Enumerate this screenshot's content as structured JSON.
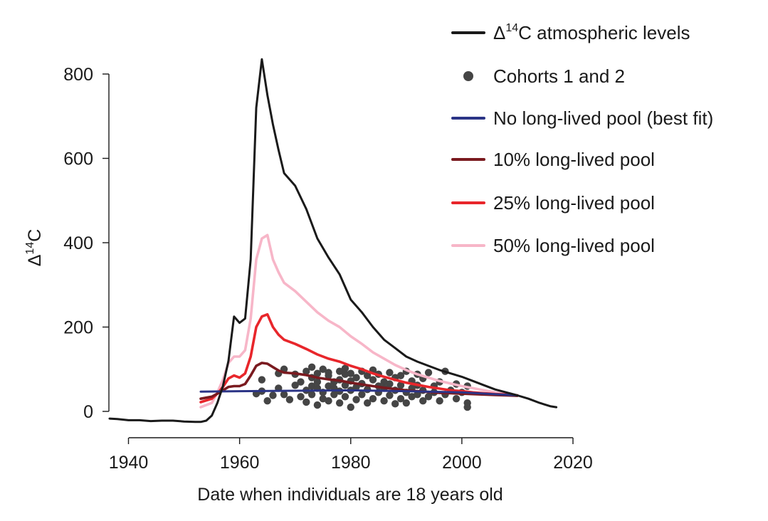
{
  "chart_data": {
    "type": "line",
    "xlabel": "Date when individuals are 18 years old",
    "ylabel": {
      "prefix": "Δ",
      "sup": "14",
      "suffix": "C"
    },
    "xlim": [
      1937,
      2020
    ],
    "ylim": [
      -25,
      850
    ],
    "x_ticks": [
      1940,
      1960,
      1980,
      2000,
      2020
    ],
    "y_ticks": [
      0,
      200,
      400,
      600,
      800
    ],
    "grid": false,
    "legend_position": "top-right",
    "legend": [
      {
        "key": "atm",
        "prefix": "Δ",
        "sup": "14",
        "suffix": "C atmospheric levels",
        "marker": "line",
        "color": "#1a1a1a"
      },
      {
        "key": "cohorts",
        "label": "Cohorts 1 and 2",
        "marker": "dot",
        "color": "#454545"
      },
      {
        "key": "none",
        "label": "No long-lived pool (best fit)",
        "marker": "line",
        "color": "#2b3486"
      },
      {
        "key": "p10",
        "label": "10% long-lived pool",
        "marker": "line",
        "color": "#7a1a1f"
      },
      {
        "key": "p25",
        "label": "25% long-lived pool",
        "marker": "line",
        "color": "#e8262b"
      },
      {
        "key": "p50",
        "label": "50% long-lived pool",
        "marker": "line",
        "color": "#f7b6c8"
      }
    ],
    "series": [
      {
        "key": "atm",
        "color": "#1a1a1a",
        "points": [
          [
            1935,
            -17
          ],
          [
            1938,
            -18
          ],
          [
            1940,
            -21
          ],
          [
            1942,
            -21
          ],
          [
            1944,
            -23
          ],
          [
            1946,
            -22
          ],
          [
            1948,
            -22
          ],
          [
            1950,
            -24
          ],
          [
            1952,
            -25
          ],
          [
            1953,
            -25
          ],
          [
            1954,
            -22
          ],
          [
            1955,
            -10
          ],
          [
            1956,
            20
          ],
          [
            1957,
            60
          ],
          [
            1958,
            120
          ],
          [
            1959,
            225
          ],
          [
            1960,
            210
          ],
          [
            1961,
            220
          ],
          [
            1962,
            360
          ],
          [
            1963,
            720
          ],
          [
            1964,
            835
          ],
          [
            1965,
            750
          ],
          [
            1966,
            680
          ],
          [
            1967,
            620
          ],
          [
            1968,
            565
          ],
          [
            1970,
            535
          ],
          [
            1972,
            480
          ],
          [
            1974,
            410
          ],
          [
            1976,
            365
          ],
          [
            1978,
            325
          ],
          [
            1980,
            265
          ],
          [
            1982,
            235
          ],
          [
            1984,
            200
          ],
          [
            1986,
            170
          ],
          [
            1988,
            150
          ],
          [
            1990,
            130
          ],
          [
            1992,
            118
          ],
          [
            1994,
            108
          ],
          [
            1996,
            98
          ],
          [
            1998,
            90
          ],
          [
            2000,
            82
          ],
          [
            2002,
            72
          ],
          [
            2004,
            62
          ],
          [
            2006,
            52
          ],
          [
            2008,
            45
          ],
          [
            2010,
            38
          ],
          [
            2012,
            30
          ],
          [
            2014,
            20
          ],
          [
            2016,
            12
          ],
          [
            2017,
            10
          ]
        ]
      },
      {
        "key": "p50",
        "color": "#f7b6c8",
        "points": [
          [
            1953,
            10
          ],
          [
            1955,
            20
          ],
          [
            1956,
            45
          ],
          [
            1957,
            75
          ],
          [
            1958,
            115
          ],
          [
            1959,
            130
          ],
          [
            1960,
            130
          ],
          [
            1961,
            145
          ],
          [
            1962,
            220
          ],
          [
            1963,
            360
          ],
          [
            1964,
            410
          ],
          [
            1965,
            418
          ],
          [
            1966,
            360
          ],
          [
            1967,
            330
          ],
          [
            1968,
            305
          ],
          [
            1970,
            285
          ],
          [
            1972,
            260
          ],
          [
            1974,
            235
          ],
          [
            1976,
            215
          ],
          [
            1978,
            200
          ],
          [
            1980,
            178
          ],
          [
            1982,
            160
          ],
          [
            1984,
            140
          ],
          [
            1986,
            125
          ],
          [
            1988,
            110
          ],
          [
            1990,
            98
          ],
          [
            1992,
            88
          ],
          [
            1994,
            80
          ],
          [
            1996,
            72
          ],
          [
            1998,
            66
          ],
          [
            2000,
            60
          ],
          [
            2002,
            55
          ],
          [
            2004,
            50
          ],
          [
            2006,
            45
          ],
          [
            2008,
            41
          ],
          [
            2010,
            38
          ]
        ]
      },
      {
        "key": "p25",
        "color": "#e8262b",
        "points": [
          [
            1953,
            22
          ],
          [
            1955,
            30
          ],
          [
            1956,
            42
          ],
          [
            1957,
            58
          ],
          [
            1958,
            78
          ],
          [
            1959,
            85
          ],
          [
            1960,
            80
          ],
          [
            1961,
            90
          ],
          [
            1962,
            130
          ],
          [
            1963,
            200
          ],
          [
            1964,
            225
          ],
          [
            1965,
            230
          ],
          [
            1966,
            200
          ],
          [
            1967,
            182
          ],
          [
            1968,
            170
          ],
          [
            1970,
            160
          ],
          [
            1972,
            148
          ],
          [
            1974,
            135
          ],
          [
            1976,
            125
          ],
          [
            1978,
            118
          ],
          [
            1980,
            108
          ],
          [
            1982,
            100
          ],
          [
            1984,
            90
          ],
          [
            1986,
            82
          ],
          [
            1988,
            75
          ],
          [
            1990,
            68
          ],
          [
            1992,
            63
          ],
          [
            1994,
            58
          ],
          [
            1996,
            54
          ],
          [
            1998,
            50
          ],
          [
            2000,
            48
          ],
          [
            2002,
            45
          ],
          [
            2004,
            43
          ],
          [
            2006,
            41
          ],
          [
            2008,
            40
          ],
          [
            2010,
            38
          ]
        ]
      },
      {
        "key": "p10",
        "color": "#7a1a1f",
        "points": [
          [
            1953,
            30
          ],
          [
            1955,
            35
          ],
          [
            1956,
            42
          ],
          [
            1957,
            50
          ],
          [
            1958,
            58
          ],
          [
            1959,
            60
          ],
          [
            1960,
            60
          ],
          [
            1961,
            65
          ],
          [
            1962,
            85
          ],
          [
            1963,
            108
          ],
          [
            1964,
            115
          ],
          [
            1965,
            113
          ],
          [
            1966,
            105
          ],
          [
            1967,
            97
          ],
          [
            1968,
            92
          ],
          [
            1970,
            90
          ],
          [
            1972,
            86
          ],
          [
            1974,
            80
          ],
          [
            1976,
            76
          ],
          [
            1978,
            73
          ],
          [
            1980,
            68
          ],
          [
            1982,
            64
          ],
          [
            1984,
            60
          ],
          [
            1986,
            56
          ],
          [
            1988,
            53
          ],
          [
            1990,
            50
          ],
          [
            1992,
            48
          ],
          [
            1994,
            46
          ],
          [
            1996,
            44
          ],
          [
            1998,
            43
          ],
          [
            2000,
            42
          ],
          [
            2002,
            41
          ],
          [
            2004,
            40
          ],
          [
            2006,
            39
          ],
          [
            2008,
            38
          ],
          [
            2010,
            37
          ]
        ]
      },
      {
        "key": "none",
        "color": "#2b3486",
        "points": [
          [
            1953,
            47
          ],
          [
            1960,
            48
          ],
          [
            1970,
            49
          ],
          [
            1980,
            50
          ],
          [
            1990,
            48
          ],
          [
            2000,
            45
          ],
          [
            2010,
            38
          ]
        ]
      }
    ],
    "scatter": {
      "name": "Cohorts 1 and 2",
      "color": "#454545",
      "points": [
        [
          1963,
          42
        ],
        [
          1964,
          75
        ],
        [
          1964,
          48
        ],
        [
          1965,
          25
        ],
        [
          1966,
          38
        ],
        [
          1967,
          90
        ],
        [
          1967,
          55
        ],
        [
          1968,
          40
        ],
        [
          1968,
          100
        ],
        [
          1969,
          28
        ],
        [
          1970,
          62
        ],
        [
          1970,
          88
        ],
        [
          1971,
          70
        ],
        [
          1971,
          35
        ],
        [
          1972,
          95
        ],
        [
          1972,
          50
        ],
        [
          1972,
          22
        ],
        [
          1973,
          80
        ],
        [
          1973,
          60
        ],
        [
          1973,
          105
        ],
        [
          1973,
          40
        ],
        [
          1974,
          15
        ],
        [
          1974,
          90
        ],
        [
          1974,
          55
        ],
        [
          1974,
          70
        ],
        [
          1975,
          30
        ],
        [
          1975,
          100
        ],
        [
          1975,
          45
        ],
        [
          1976,
          85
        ],
        [
          1976,
          60
        ],
        [
          1976,
          25
        ],
        [
          1976,
          92
        ],
        [
          1977,
          70
        ],
        [
          1977,
          40
        ],
        [
          1977,
          55
        ],
        [
          1978,
          95
        ],
        [
          1978,
          20
        ],
        [
          1978,
          75
        ],
        [
          1978,
          48
        ],
        [
          1979,
          88
        ],
        [
          1979,
          35
        ],
        [
          1979,
          62
        ],
        [
          1979,
          102
        ],
        [
          1980,
          10
        ],
        [
          1980,
          72
        ],
        [
          1980,
          50
        ],
        [
          1980,
          90
        ],
        [
          1981,
          28
        ],
        [
          1981,
          80
        ],
        [
          1981,
          58
        ],
        [
          1982,
          95
        ],
        [
          1982,
          40
        ],
        [
          1982,
          66
        ],
        [
          1983,
          20
        ],
        [
          1983,
          85
        ],
        [
          1983,
          52
        ],
        [
          1984,
          75
        ],
        [
          1984,
          30
        ],
        [
          1984,
          98
        ],
        [
          1985,
          60
        ],
        [
          1985,
          45
        ],
        [
          1985,
          88
        ],
        [
          1986,
          25
        ],
        [
          1986,
          70
        ],
        [
          1986,
          55
        ],
        [
          1987,
          92
        ],
        [
          1987,
          38
        ],
        [
          1987,
          65
        ],
        [
          1988,
          18
        ],
        [
          1988,
          80
        ],
        [
          1988,
          50
        ],
        [
          1989,
          85
        ],
        [
          1989,
          30
        ],
        [
          1989,
          62
        ],
        [
          1990,
          95
        ],
        [
          1990,
          45
        ],
        [
          1990,
          20
        ],
        [
          1991,
          72
        ],
        [
          1991,
          55
        ],
        [
          1991,
          35
        ],
        [
          1992,
          88
        ],
        [
          1992,
          40
        ],
        [
          1992,
          62
        ],
        [
          1993,
          25
        ],
        [
          1993,
          78
        ],
        [
          1993,
          50
        ],
        [
          1994,
          92
        ],
        [
          1994,
          35
        ],
        [
          1995,
          60
        ],
        [
          1995,
          45
        ],
        [
          1996,
          25
        ],
        [
          1996,
          70
        ],
        [
          1997,
          95
        ],
        [
          1997,
          40
        ],
        [
          1998,
          50
        ],
        [
          1999,
          30
        ],
        [
          1999,
          65
        ],
        [
          2000,
          45
        ],
        [
          2001,
          60
        ],
        [
          2001,
          20
        ],
        [
          2001,
          10
        ]
      ]
    }
  }
}
